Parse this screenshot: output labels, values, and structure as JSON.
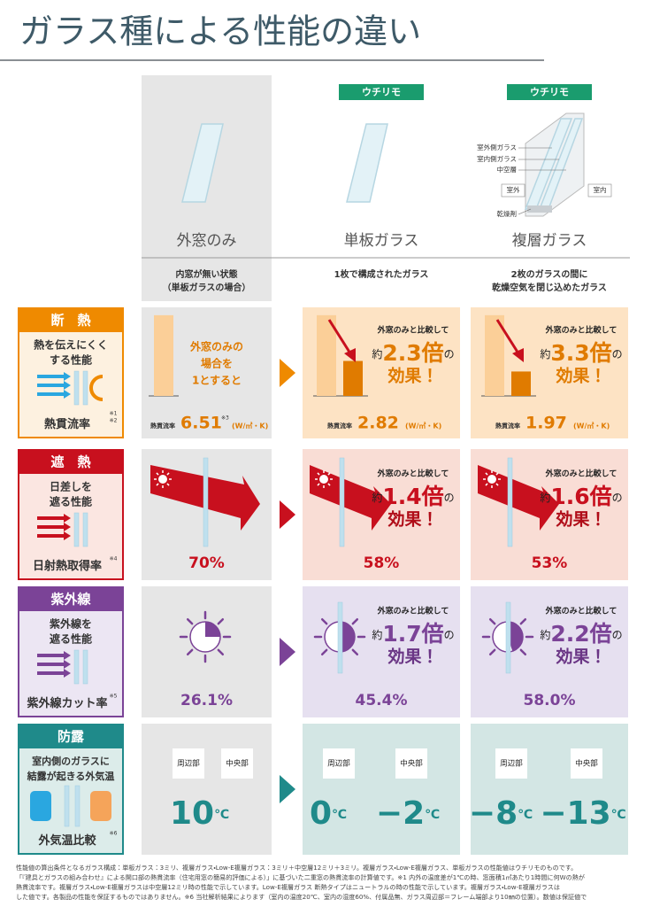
{
  "title": "ガラス種による性能の違い",
  "columns": [
    {
      "name": "外窓のみ",
      "description": [
        "内窓が無い状態",
        "（単板ガラスの場合）"
      ]
    },
    {
      "badge": "ウチリモ",
      "name": "単板ガラス",
      "description": [
        "1枚で構成されたガラス"
      ]
    },
    {
      "badge": "ウチリモ",
      "name": "複層ガラス",
      "description": [
        "2枚のガラスの間に",
        "乾燥空気を閉じ込めたガラス"
      ]
    }
  ],
  "diagram": {
    "outer_glass": "室外側ガラス",
    "inner_glass": "室内側ガラス",
    "air_layer": "中空層",
    "outside": "室外",
    "inside": "室内",
    "desiccant": "乾燥剤"
  },
  "comparison": {
    "prefix": "外窓のみと比較して",
    "approx": "約",
    "suffix": "の",
    "effect": "効果！"
  },
  "rows": [
    {
      "label": "断　熱",
      "description": [
        "熱を伝えにくく",
        "する性能"
      ],
      "metric": "熱貫流率",
      "metric_notes": [
        "※1",
        "※2"
      ],
      "baseline_note": [
        "外窓のみの",
        "場合を",
        "1とすると"
      ],
      "value_caption": "熱貫流率",
      "value_note": "※3",
      "unit": "(W/㎡・K)",
      "values": [
        6.51,
        2.82,
        1.97
      ],
      "ratios": [
        "2.3倍",
        "3.3倍"
      ]
    },
    {
      "label": "遮　熱",
      "description": [
        "日差しを",
        "遮る性能"
      ],
      "metric": "日射熱取得率",
      "metric_notes": [
        "※4"
      ],
      "values": [
        "70%",
        "58%",
        "53%"
      ],
      "ratios": [
        "1.4倍",
        "1.6倍"
      ]
    },
    {
      "label": "紫外線",
      "description": [
        "紫外線を",
        "遮る性能"
      ],
      "metric": "紫外線カット率",
      "metric_notes": [
        "※5"
      ],
      "values": [
        "26.1%",
        "45.4%",
        "58.0%"
      ],
      "ratios": [
        "1.7倍",
        "2.2倍"
      ]
    },
    {
      "label": "防露",
      "description": [
        "室内側のガラスに",
        "結露が起きる外気温"
      ],
      "metric": "外気温比較",
      "metric_notes": [
        "※6"
      ],
      "positions": [
        "周辺部",
        "中央部"
      ],
      "unit": "℃",
      "values": [
        [
          "10"
        ],
        [
          "0",
          "−2"
        ],
        [
          "−8",
          "−13"
        ]
      ]
    }
  ],
  "footnote": [
    "性能値の算出条件となるガラス構成：単板ガラス：3ミリ、複層ガラス・Low-E複層ガラス：3ミリ＋中空層12ミリ＋3ミリ。複層ガラス・Low-E複層ガラス、単板ガラスの性能値はウチリモのものです。",
    "「『建具とガラスの組み合わせ』による開口部の熱貫流率（住宅用窓の簡易的評価による）」に基づいた二重窓の熱貫流率の計算値です。※1 内外の温度差が1℃の時、窓面積1㎡あたり1時間に何Wの熱が",
    "熱貫流率です。複層ガラス・Low-E複層ガラスは中空層12ミリ時の性能で示しています。Low-E複層ガラス 断熱タイプはニュートラルの時の性能で示しています。複層ガラス・Low-E複層ガラスは",
    "した値です。各製品の性能を保証するものではありません。※6 当社解析結果によります（室内の温度20℃、室内の湿度60%、付属品無、ガラス周辺部＝フレーム端部より10㎜の位置）。数値は保証値で"
  ]
}
